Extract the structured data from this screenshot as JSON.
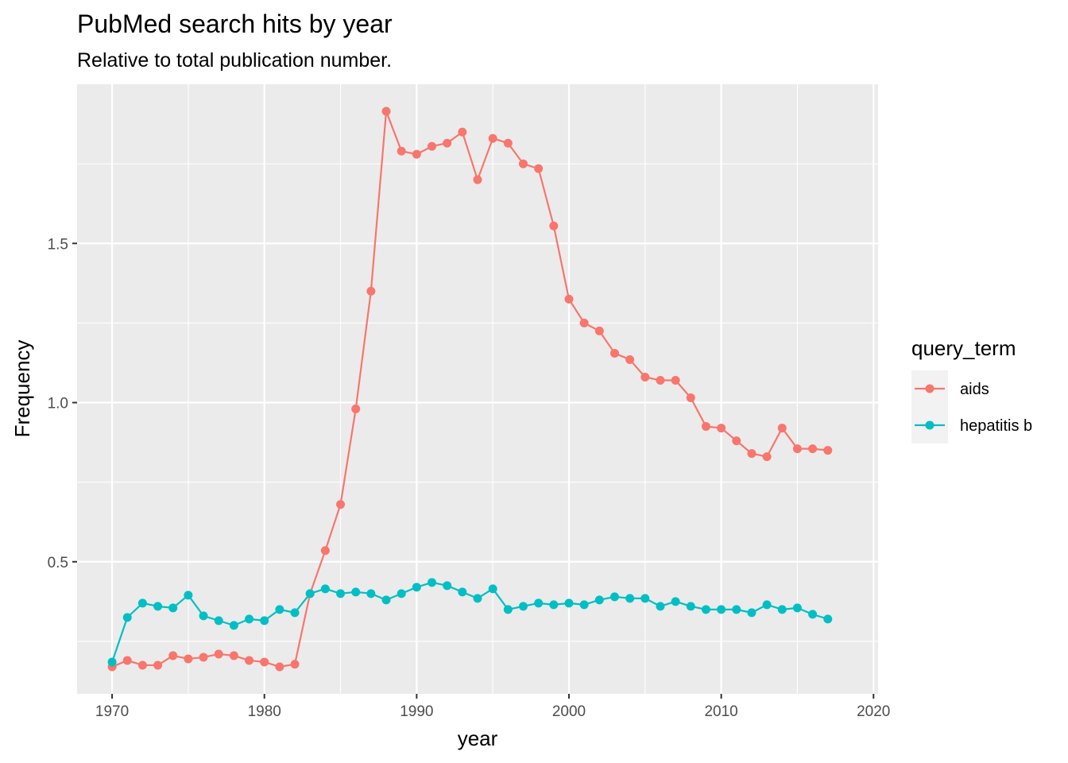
{
  "chart_data": {
    "type": "line",
    "title": "PubMed search hits by year",
    "subtitle": "Relative to total publication number.",
    "xlabel": "year",
    "ylabel": "Frequency",
    "xlim": [
      1967.7,
      2020.3
    ],
    "ylim": [
      0.085,
      2.0
    ],
    "x_ticks": [
      1970,
      1980,
      1990,
      2000,
      2010,
      2020
    ],
    "y_ticks": [
      0.5,
      1.0,
      1.5
    ],
    "x_tick_labels": [
      "1970",
      "1980",
      "1990",
      "2000",
      "2010",
      "2020"
    ],
    "y_tick_labels": [
      "0.5",
      "1.0",
      "1.5"
    ],
    "grid": true,
    "legend": {
      "title": "query_term",
      "position": "right"
    },
    "x": [
      1970,
      1971,
      1972,
      1973,
      1974,
      1975,
      1976,
      1977,
      1978,
      1979,
      1980,
      1981,
      1982,
      1983,
      1984,
      1985,
      1986,
      1987,
      1988,
      1989,
      1990,
      1991,
      1992,
      1993,
      1994,
      1995,
      1996,
      1997,
      1998,
      1999,
      2000,
      2001,
      2002,
      2003,
      2004,
      2005,
      2006,
      2007,
      2008,
      2009,
      2010,
      2011,
      2012,
      2013,
      2014,
      2015,
      2016,
      2017
    ],
    "series": [
      {
        "name": "aids",
        "color": "#F8766D",
        "values": [
          0.17,
          0.19,
          0.175,
          0.175,
          0.205,
          0.195,
          0.2,
          0.21,
          0.205,
          0.19,
          0.185,
          0.17,
          0.178,
          0.4,
          0.535,
          0.68,
          0.98,
          1.35,
          1.915,
          1.79,
          1.78,
          1.805,
          1.815,
          1.85,
          1.7,
          1.83,
          1.815,
          1.75,
          1.735,
          1.555,
          1.325,
          1.25,
          1.225,
          1.155,
          1.135,
          1.08,
          1.07,
          1.07,
          1.015,
          0.925,
          0.92,
          0.88,
          0.84,
          0.83,
          0.92,
          0.855,
          0.855,
          0.85
        ]
      },
      {
        "name": "hepatitis b",
        "color": "#00BFC4",
        "values": [
          0.185,
          0.325,
          0.37,
          0.36,
          0.355,
          0.395,
          0.33,
          0.315,
          0.3,
          0.32,
          0.315,
          0.35,
          0.34,
          0.4,
          0.415,
          0.4,
          0.405,
          0.4,
          0.38,
          0.4,
          0.42,
          0.435,
          0.425,
          0.405,
          0.385,
          0.415,
          0.35,
          0.36,
          0.37,
          0.365,
          0.37,
          0.365,
          0.38,
          0.39,
          0.385,
          0.385,
          0.36,
          0.375,
          0.36,
          0.35,
          0.35,
          0.35,
          0.34,
          0.365,
          0.35,
          0.355,
          0.335,
          0.32
        ]
      }
    ]
  }
}
